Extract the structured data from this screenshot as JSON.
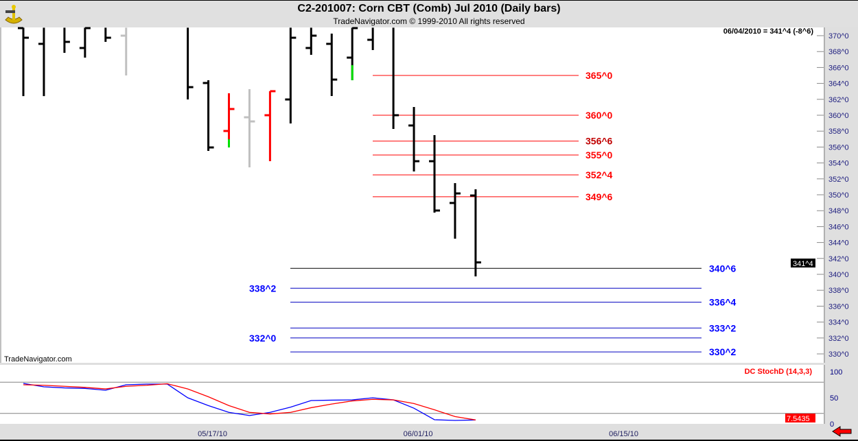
{
  "header": {
    "title": "C2-201007:  Corn CBT (Comb) Jul 2010  (Daily bars)",
    "subtitle": "TradeNavigator.com © 1999-2010 All rights reserved"
  },
  "watermark": "TradeNavigator.com",
  "last_readout": "06/04/2010 = 341^4 (-8^6)",
  "last_price_tag": "341^4",
  "indicator": {
    "name": "DC StochD (14,3,3)",
    "last_value_tag": "7.5435",
    "axis_ticks": [
      "100",
      "50",
      "0"
    ]
  },
  "colors": {
    "up": "#ff0000",
    "neutral": "#c0c0c0",
    "bar": "#000000",
    "green": "#00e000",
    "blue": "#0000ff",
    "red": "#ff0000"
  },
  "chart_data": {
    "type": "ohlc",
    "ylim": [
      329.5,
      371
    ],
    "y_ticks": [
      "370^0",
      "368^0",
      "366^0",
      "364^0",
      "362^0",
      "360^0",
      "358^0",
      "356^0",
      "354^0",
      "352^0",
      "350^0",
      "348^0",
      "346^0",
      "344^0",
      "342^0",
      "340^0",
      "338^0",
      "336^0",
      "334^0",
      "332^0",
      "330^0"
    ],
    "x_ticks": [
      {
        "slot": 9,
        "label": "05/17/10"
      },
      {
        "slot": 19,
        "label": "06/01/10"
      },
      {
        "slot": 29,
        "label": "06/15/10"
      }
    ],
    "bars": [
      {
        "slot": 0,
        "date": "05/04",
        "h": 371,
        "l": 362.4,
        "o": 370.95,
        "c": 369.74,
        "color": "bar"
      },
      {
        "slot": 1,
        "date": "05/05",
        "h": 371,
        "l": 362.4,
        "o": 368.97,
        "c": null,
        "color": "bar"
      },
      {
        "slot": 2,
        "date": "05/06",
        "h": 371,
        "l": 367.84,
        "o": null,
        "c": 369.22,
        "color": "bar"
      },
      {
        "slot": 3,
        "date": "05/07",
        "h": 371,
        "l": 367.24,
        "o": 368.45,
        "c": 370.95,
        "color": "bar"
      },
      {
        "slot": 4,
        "date": "05/10",
        "h": 371,
        "l": 369.22,
        "o": null,
        "c": 369.74,
        "color": "bar"
      },
      {
        "slot": 5,
        "date": "05/11",
        "h": 371,
        "l": 365.0,
        "o": 370.0,
        "c": null,
        "color": "neutral"
      },
      {
        "slot": 8,
        "date": "05/14",
        "h": 371,
        "l": 361.98,
        "o": null,
        "c": 363.53,
        "color": "bar"
      },
      {
        "slot": 9,
        "date": "05/17",
        "h": 364.4,
        "l": 355.52,
        "o": 364.05,
        "c": 355.95,
        "color": "bar"
      },
      {
        "slot": 10,
        "date": "05/18",
        "h": 362.76,
        "l": 355.95,
        "o": 358.02,
        "c": 360.78,
        "color": "up",
        "green_low": 356.98
      },
      {
        "slot": 11,
        "date": "05/19",
        "h": 363.28,
        "l": 353.45,
        "o": 359.74,
        "c": 359.22,
        "color": "neutral"
      },
      {
        "slot": 12,
        "date": "05/20",
        "h": 363.02,
        "l": 354.22,
        "o": 360.0,
        "c": 363.02,
        "color": "up"
      },
      {
        "slot": 13,
        "date": "05/21",
        "h": 371,
        "l": 358.97,
        "o": 361.98,
        "c": 369.74,
        "color": "bar"
      },
      {
        "slot": 14,
        "date": "05/24",
        "h": 371,
        "l": 367.59,
        "o": 368.45,
        "c": 370.0,
        "color": "bar"
      },
      {
        "slot": 15,
        "date": "05/25",
        "h": 370.26,
        "l": 362.41,
        "o": 368.97,
        "c": 364.48,
        "color": "bar"
      },
      {
        "slot": 16,
        "date": "05/26",
        "h": 371,
        "l": 364.4,
        "o": 367.24,
        "c": 370.95,
        "color": "bar",
        "green_low": 366.29
      },
      {
        "slot": 17,
        "date": "05/27",
        "h": 371,
        "l": 368.19,
        "o": 369.48,
        "c": null,
        "color": "bar"
      },
      {
        "slot": 18,
        "date": "05/28",
        "h": 371,
        "l": 358.28,
        "o": null,
        "c": 360.0,
        "color": "bar"
      },
      {
        "slot": 19,
        "date": "06/01",
        "h": 361.03,
        "l": 352.93,
        "o": 358.71,
        "c": 354.22,
        "color": "bar"
      },
      {
        "slot": 20,
        "date": "06/02",
        "h": 357.5,
        "l": 347.76,
        "o": 354.22,
        "c": 348.02,
        "color": "bar"
      },
      {
        "slot": 21,
        "date": "06/03",
        "h": 351.47,
        "l": 344.48,
        "o": 348.97,
        "c": 350.17,
        "color": "bar"
      },
      {
        "slot": 22,
        "date": "06/04",
        "h": 350.69,
        "l": 339.74,
        "o": 349.91,
        "c": 341.5,
        "color": "bar"
      }
    ],
    "levels_resistance": [
      {
        "price": 365.0,
        "label": "365^0"
      },
      {
        "price": 360.0,
        "label": "360^0"
      },
      {
        "price": 356.75,
        "label": "356^6"
      },
      {
        "price": 355.0,
        "label": "355^0"
      },
      {
        "price": 352.5,
        "label": "352^4"
      },
      {
        "price": 349.75,
        "label": "349^6"
      }
    ],
    "levels_support": [
      {
        "price": 340.75,
        "label": "340^6",
        "side": "right"
      },
      {
        "price": 338.25,
        "label": "338^2",
        "side": "left"
      },
      {
        "price": 336.5,
        "label": "336^4",
        "side": "right"
      },
      {
        "price": 333.25,
        "label": "333^2",
        "side": "right"
      },
      {
        "price": 332.0,
        "label": "332^0",
        "side": "left"
      },
      {
        "price": 330.25,
        "label": "330^2",
        "side": "right"
      }
    ],
    "stoch": {
      "ylim": [
        0,
        100
      ],
      "levels": [
        80,
        20
      ],
      "fast": [
        77.6,
        71,
        69,
        68,
        64.5,
        75,
        76.3,
        76.3,
        50,
        35,
        22,
        16,
        22,
        32,
        44.7,
        45.5,
        46,
        50,
        46,
        30,
        7.9,
        6.6,
        7.5
      ],
      "slow": [
        75,
        74,
        72,
        70,
        67,
        72,
        74,
        77,
        67,
        52,
        35,
        22,
        19,
        22,
        31,
        38,
        44,
        47,
        46,
        39,
        27,
        14,
        7.5
      ]
    }
  }
}
